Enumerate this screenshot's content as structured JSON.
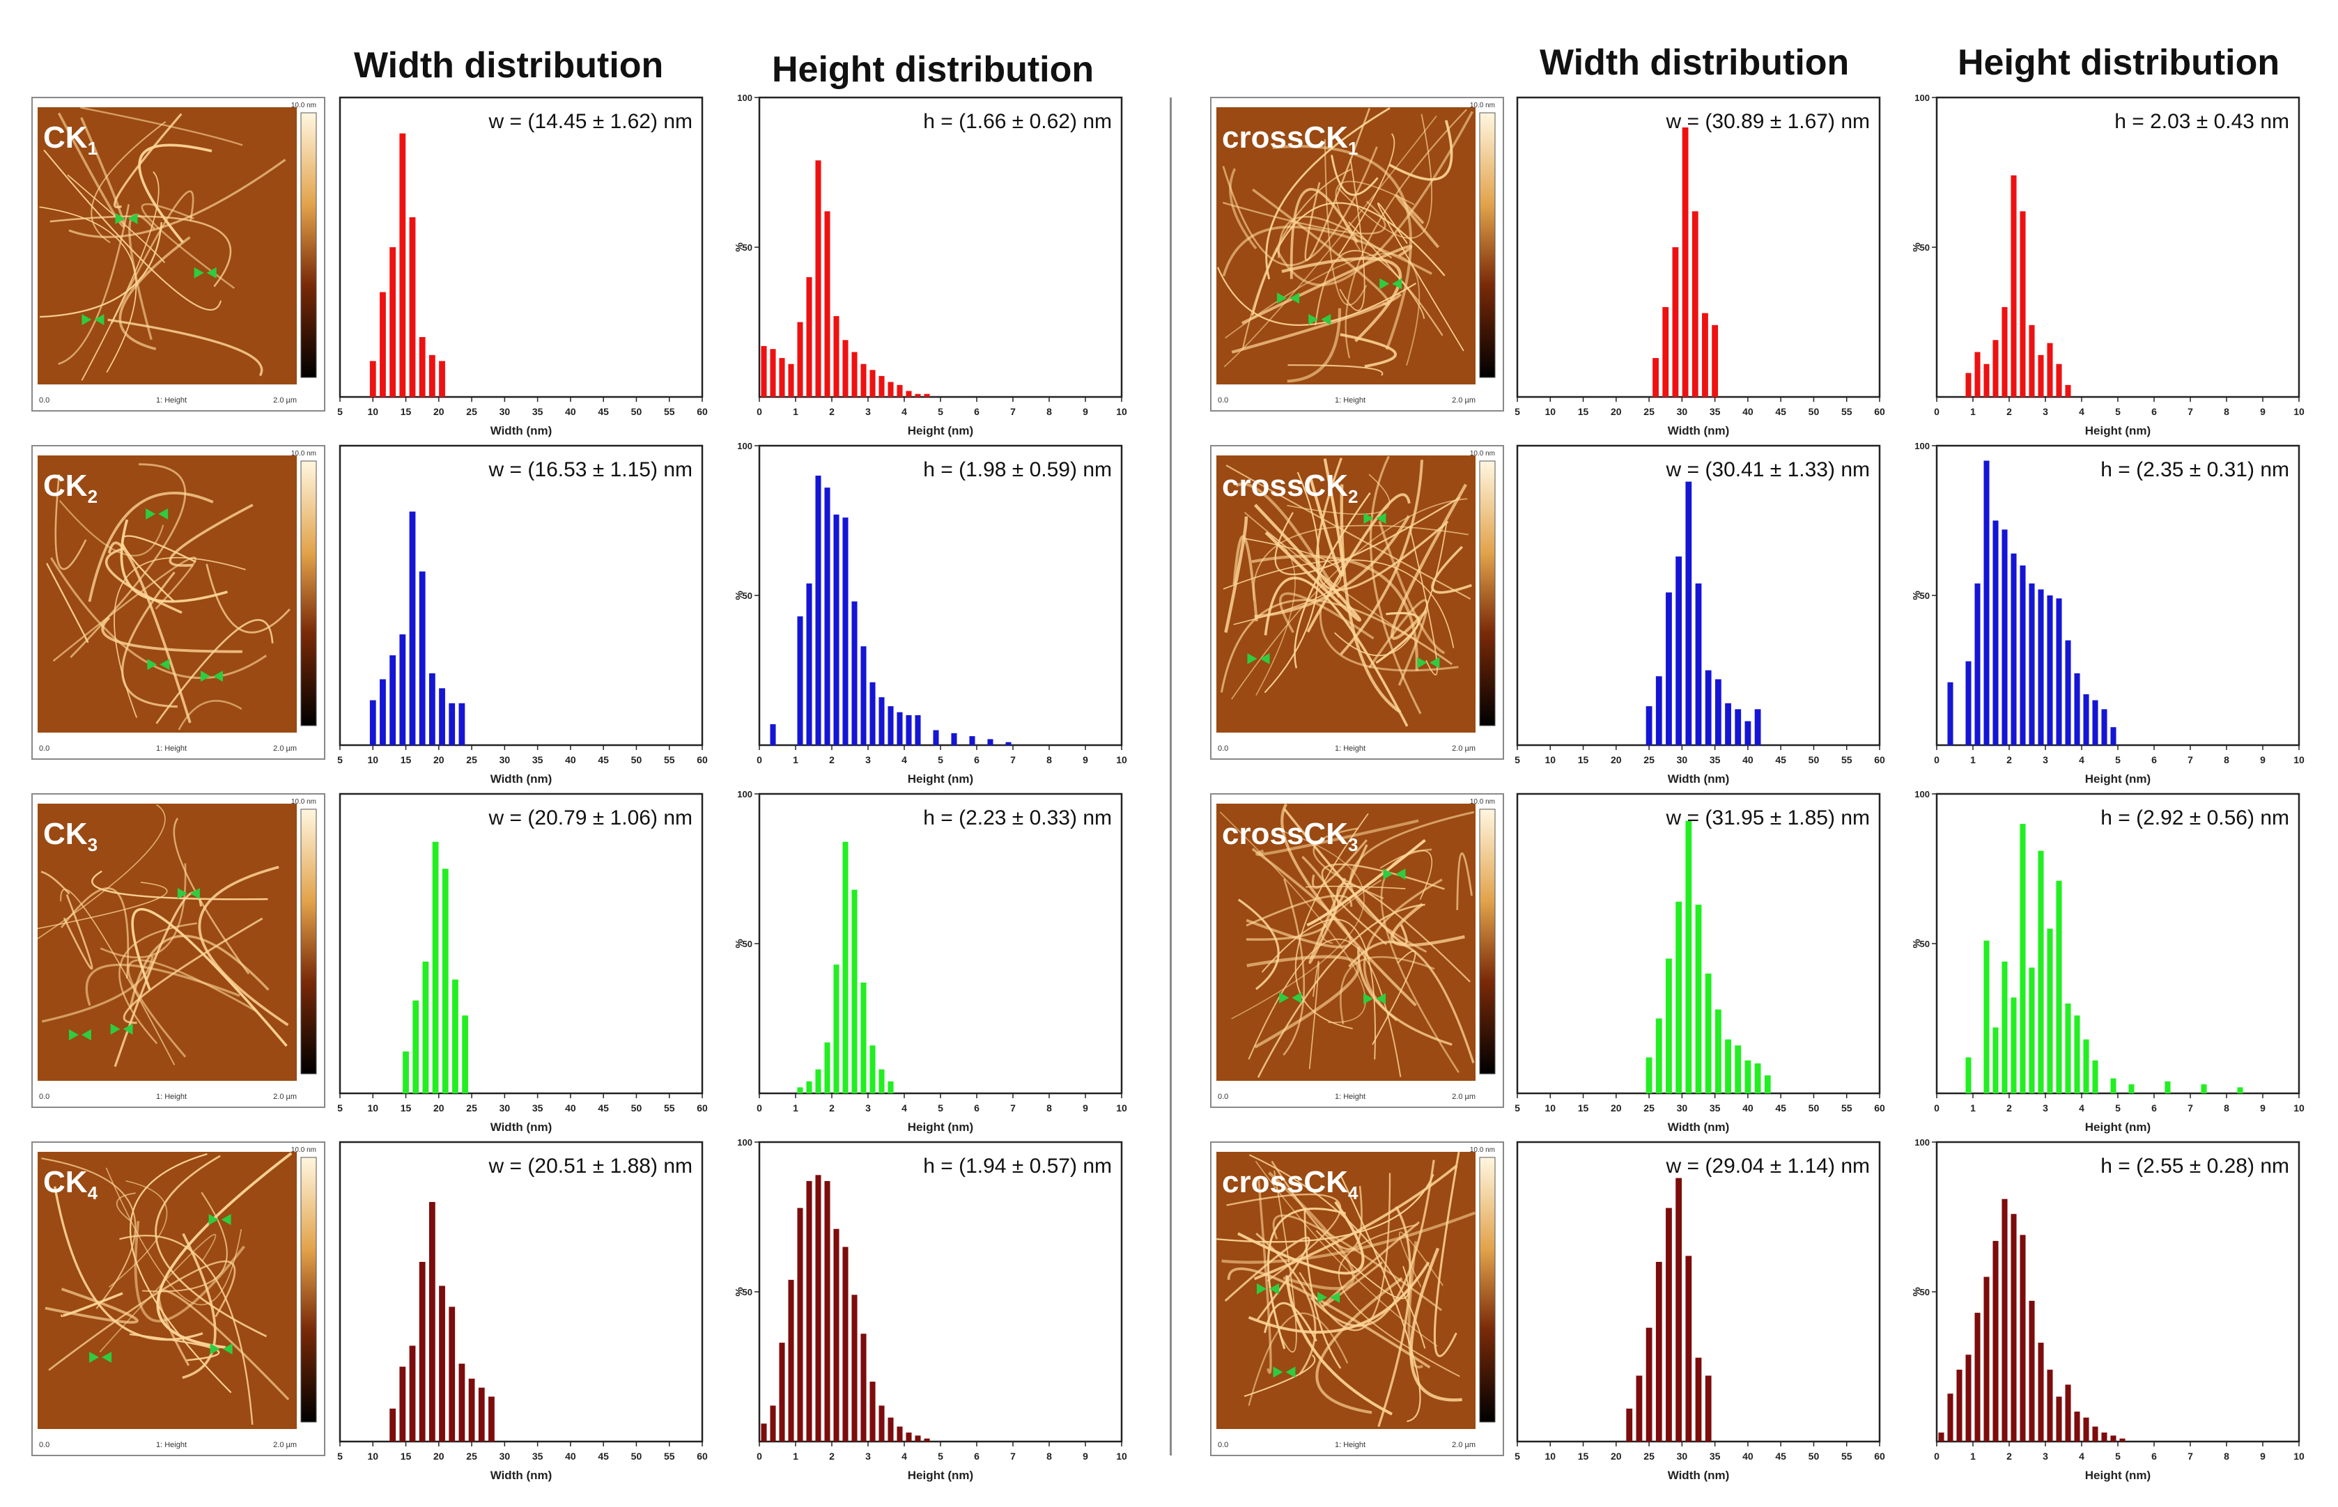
{
  "column_headers": {
    "left_width": "Width distribution",
    "left_height": "Height distribution",
    "right_width": "Width distribution",
    "right_height": "Height distribution"
  },
  "colors": {
    "row1": "#ee1111",
    "row2": "#1515d6",
    "row3": "#22ee22",
    "row4": "#7d0c0c",
    "afm_bg": "#9a4a12",
    "fibril": "#ffd79a",
    "arrow": "#2ecc40",
    "divider": "#8a8a8a"
  },
  "afm_images": [
    {
      "id": "CK1",
      "label_main": "CK",
      "label_sub": "1",
      "color_bar_top": "10.0 nm",
      "scale_left": "0.0",
      "scale_mid": "1: Height",
      "scale_right": "2.0 µm"
    },
    {
      "id": "CK2",
      "label_main": "CK",
      "label_sub": "2",
      "color_bar_top": "10.0 nm",
      "scale_left": "0.0",
      "scale_mid": "1: Height",
      "scale_right": "2.0 µm"
    },
    {
      "id": "CK3",
      "label_main": "CK",
      "label_sub": "3",
      "color_bar_top": "10.0 nm",
      "scale_left": "0.0",
      "scale_mid": "1: Height",
      "scale_right": "2.0 µm"
    },
    {
      "id": "CK4",
      "label_main": "CK",
      "label_sub": "4",
      "color_bar_top": "10.0 nm",
      "scale_left": "0.0",
      "scale_mid": "1: Height",
      "scale_right": "2.0 µm"
    },
    {
      "id": "crossCK1",
      "label_main": "crossCK",
      "label_sub": "1",
      "color_bar_top": "10.0 nm",
      "scale_left": "0.0",
      "scale_mid": "1: Height",
      "scale_right": "2.0 µm"
    },
    {
      "id": "crossCK2",
      "label_main": "crossCK",
      "label_sub": "2",
      "color_bar_top": "10.0 nm",
      "scale_left": "0.0",
      "scale_mid": "1: Height",
      "scale_right": "2.0 µm"
    },
    {
      "id": "crossCK3",
      "label_main": "crossCK",
      "label_sub": "3",
      "color_bar_top": "10.0 nm",
      "scale_left": "0.0",
      "scale_mid": "1: Height",
      "scale_right": "2.0 µm"
    },
    {
      "id": "crossCK4",
      "label_main": "crossCK",
      "label_sub": "4",
      "color_bar_top": "10.0 nm",
      "scale_left": "0.0",
      "scale_mid": "1: Height",
      "scale_right": "2.0 µm"
    }
  ],
  "chart_data": [
    {
      "type": "bar",
      "sample": "CK1",
      "kind": "width",
      "annotation": "w = (14.45 ± 1.62) nm",
      "xlabel": "Width (nm)",
      "ylabel": "",
      "xlim": [
        5,
        60
      ],
      "ylim": [
        0,
        100
      ],
      "xticks": [
        5,
        10,
        15,
        20,
        25,
        30,
        35,
        40,
        45,
        50,
        55,
        60
      ],
      "yticks": [],
      "bin_width": 1.5,
      "color_key": "row1",
      "x": [
        10,
        11.5,
        13,
        14.5,
        16,
        17.5,
        19,
        20.5
      ],
      "values": [
        12,
        35,
        50,
        88,
        60,
        20,
        14,
        12
      ]
    },
    {
      "type": "bar",
      "sample": "CK1",
      "kind": "height",
      "annotation": "h = (1.66 ± 0.62) nm",
      "xlabel": "Height (nm)",
      "ylabel": "%",
      "xlim": [
        0,
        10
      ],
      "ylim": [
        0,
        100
      ],
      "xticks": [
        0,
        1,
        2,
        3,
        4,
        5,
        6,
        7,
        8,
        9,
        10
      ],
      "yticks": [
        50,
        100
      ],
      "bin_width": 0.25,
      "color_key": "row1",
      "x": [
        0.125,
        0.375,
        0.625,
        0.875,
        1.125,
        1.375,
        1.625,
        1.875,
        2.125,
        2.375,
        2.625,
        2.875,
        3.125,
        3.375,
        3.625,
        3.875,
        4.125,
        4.375,
        4.625
      ],
      "values": [
        17,
        16,
        13,
        11,
        25,
        40,
        79,
        62,
        27,
        19,
        15,
        11,
        9,
        7,
        5,
        4,
        2,
        1,
        1
      ]
    },
    {
      "type": "bar",
      "sample": "CK2",
      "kind": "width",
      "annotation": "w = (16.53 ± 1.15) nm",
      "xlabel": "Width (nm)",
      "ylabel": "",
      "xlim": [
        5,
        60
      ],
      "ylim": [
        0,
        100
      ],
      "xticks": [
        5,
        10,
        15,
        20,
        25,
        30,
        35,
        40,
        45,
        50,
        55,
        60
      ],
      "yticks": [],
      "bin_width": 1.5,
      "color_key": "row2",
      "x": [
        10,
        11.5,
        13,
        14.5,
        16,
        17.5,
        19,
        20.5,
        22,
        23.5
      ],
      "values": [
        15,
        22,
        30,
        37,
        78,
        58,
        24,
        19,
        14,
        14
      ]
    },
    {
      "type": "bar",
      "sample": "CK2",
      "kind": "height",
      "annotation": "h = (1.98 ± 0.59) nm",
      "xlabel": "Height (nm)",
      "ylabel": "%",
      "xlim": [
        0,
        10
      ],
      "ylim": [
        0,
        100
      ],
      "xticks": [
        0,
        1,
        2,
        3,
        4,
        5,
        6,
        7,
        8,
        9,
        10
      ],
      "yticks": [
        50,
        100
      ],
      "bin_width": 0.25,
      "color_key": "row2",
      "x": [
        0.375,
        1.125,
        1.375,
        1.625,
        1.875,
        2.125,
        2.375,
        2.625,
        2.875,
        3.125,
        3.375,
        3.625,
        3.875,
        4.125,
        4.375,
        4.875,
        5.375,
        5.875,
        6.375,
        6.875
      ],
      "values": [
        7,
        43,
        54,
        90,
        86,
        77,
        76,
        48,
        33,
        21,
        16,
        13,
        11,
        10,
        10,
        5,
        4,
        3,
        2,
        1
      ]
    },
    {
      "type": "bar",
      "sample": "CK3",
      "kind": "width",
      "annotation": "w = (20.79 ± 1.06) nm",
      "xlabel": "Width (nm)",
      "ylabel": "",
      "xlim": [
        5,
        60
      ],
      "ylim": [
        0,
        100
      ],
      "xticks": [
        5,
        10,
        15,
        20,
        25,
        30,
        35,
        40,
        45,
        50,
        55,
        60
      ],
      "yticks": [],
      "bin_width": 1.5,
      "color_key": "row3",
      "x": [
        15,
        16.5,
        18,
        19.5,
        21,
        22.5,
        24
      ],
      "values": [
        14,
        31,
        44,
        84,
        75,
        38,
        26
      ]
    },
    {
      "type": "bar",
      "sample": "CK3",
      "kind": "height",
      "annotation": "h = (2.23 ± 0.33) nm",
      "xlabel": "Height (nm)",
      "ylabel": "%",
      "xlim": [
        0,
        10
      ],
      "ylim": [
        0,
        100
      ],
      "xticks": [
        0,
        1,
        2,
        3,
        4,
        5,
        6,
        7,
        8,
        9,
        10
      ],
      "yticks": [
        50,
        100
      ],
      "bin_width": 0.25,
      "color_key": "row3",
      "x": [
        1.125,
        1.375,
        1.625,
        1.875,
        2.125,
        2.375,
        2.625,
        2.875,
        3.125,
        3.375,
        3.625
      ],
      "values": [
        2,
        4,
        8,
        17,
        43,
        84,
        68,
        37,
        16,
        8,
        4
      ]
    },
    {
      "type": "bar",
      "sample": "CK4",
      "kind": "width",
      "annotation": "w = (20.51 ± 1.88) nm",
      "xlabel": "Width (nm)",
      "ylabel": "",
      "xlim": [
        5,
        60
      ],
      "ylim": [
        0,
        100
      ],
      "xticks": [
        5,
        10,
        15,
        20,
        25,
        30,
        35,
        40,
        45,
        50,
        55,
        60
      ],
      "yticks": [],
      "bin_width": 1.5,
      "color_key": "row4",
      "x": [
        13,
        14.5,
        16,
        17.5,
        19,
        20.5,
        22,
        23.5,
        25,
        26.5,
        28
      ],
      "values": [
        11,
        25,
        32,
        60,
        80,
        52,
        45,
        26,
        21,
        18,
        15
      ]
    },
    {
      "type": "bar",
      "sample": "CK4",
      "kind": "height",
      "annotation": "h = (1.94 ± 0.57) nm",
      "xlabel": "Height (nm)",
      "ylabel": "%",
      "xlim": [
        0,
        10
      ],
      "ylim": [
        0,
        100
      ],
      "xticks": [
        0,
        1,
        2,
        3,
        4,
        5,
        6,
        7,
        8,
        9,
        10
      ],
      "yticks": [
        50,
        100
      ],
      "bin_width": 0.25,
      "color_key": "row4",
      "x": [
        0.125,
        0.375,
        0.625,
        0.875,
        1.125,
        1.375,
        1.625,
        1.875,
        2.125,
        2.375,
        2.625,
        2.875,
        3.125,
        3.375,
        3.625,
        3.875,
        4.125,
        4.375,
        4.625
      ],
      "values": [
        6,
        12,
        33,
        54,
        78,
        87,
        89,
        87,
        71,
        65,
        49,
        36,
        20,
        12,
        8,
        5,
        3,
        2,
        1
      ]
    },
    {
      "type": "bar",
      "sample": "crossCK1",
      "kind": "width",
      "annotation": "w = (30.89 ± 1.67) nm",
      "xlabel": "Width (nm)",
      "ylabel": "",
      "xlim": [
        5,
        60
      ],
      "ylim": [
        0,
        100
      ],
      "xticks": [
        5,
        10,
        15,
        20,
        25,
        30,
        35,
        40,
        45,
        50,
        55,
        60
      ],
      "yticks": [],
      "bin_width": 1.5,
      "color_key": "row1",
      "x": [
        26,
        27.5,
        29,
        30.5,
        32,
        33.5,
        35
      ],
      "values": [
        13,
        30,
        50,
        90,
        62,
        28,
        24
      ]
    },
    {
      "type": "bar",
      "sample": "crossCK1",
      "kind": "height",
      "annotation": "h = 2.03 ± 0.43 nm",
      "xlabel": "Height (nm)",
      "ylabel": "%",
      "xlim": [
        0,
        10
      ],
      "ylim": [
        0,
        100
      ],
      "xticks": [
        0,
        1,
        2,
        3,
        4,
        5,
        6,
        7,
        8,
        9,
        10
      ],
      "yticks": [
        50,
        100
      ],
      "bin_width": 0.25,
      "color_key": "row1",
      "x": [
        0.875,
        1.125,
        1.375,
        1.625,
        1.875,
        2.125,
        2.375,
        2.625,
        2.875,
        3.125,
        3.375,
        3.625
      ],
      "values": [
        8,
        15,
        11,
        19,
        30,
        74,
        62,
        24,
        14,
        18,
        11,
        4
      ]
    },
    {
      "type": "bar",
      "sample": "crossCK2",
      "kind": "width",
      "annotation": "w = (30.41 ± 1.33) nm",
      "xlabel": "Width (nm)",
      "ylabel": "",
      "xlim": [
        5,
        60
      ],
      "ylim": [
        0,
        100
      ],
      "xticks": [
        5,
        10,
        15,
        20,
        25,
        30,
        35,
        40,
        45,
        50,
        55,
        60
      ],
      "yticks": [],
      "bin_width": 1.5,
      "color_key": "row2",
      "x": [
        25,
        26.5,
        28,
        29.5,
        31,
        32.5,
        34,
        35.5,
        37,
        38.5,
        40,
        41.5
      ],
      "values": [
        13,
        23,
        51,
        63,
        88,
        54,
        25,
        22,
        14,
        12,
        8,
        12
      ]
    },
    {
      "type": "bar",
      "sample": "crossCK2",
      "kind": "height",
      "annotation": "h = (2.35 ± 0.31) nm",
      "xlabel": "Height (nm)",
      "ylabel": "%",
      "xlim": [
        0,
        10
      ],
      "ylim": [
        0,
        100
      ],
      "xticks": [
        0,
        1,
        2,
        3,
        4,
        5,
        6,
        7,
        8,
        9,
        10
      ],
      "yticks": [
        50,
        100
      ],
      "bin_width": 0.25,
      "color_key": "row2",
      "x": [
        0.375,
        0.875,
        1.125,
        1.375,
        1.625,
        1.875,
        2.125,
        2.375,
        2.625,
        2.875,
        3.125,
        3.375,
        3.625,
        3.875,
        4.125,
        4.375,
        4.625,
        4.875
      ],
      "values": [
        21,
        28,
        54,
        95,
        75,
        72,
        64,
        60,
        54,
        52,
        50,
        49,
        35,
        24,
        17,
        15,
        12,
        6
      ]
    },
    {
      "type": "bar",
      "sample": "crossCK3",
      "kind": "width",
      "annotation": "w = (31.95 ± 1.85) nm",
      "xlabel": "Width (nm)",
      "ylabel": "",
      "xlim": [
        5,
        60
      ],
      "ylim": [
        0,
        100
      ],
      "xticks": [
        5,
        10,
        15,
        20,
        25,
        30,
        35,
        40,
        45,
        50,
        55,
        60
      ],
      "yticks": [],
      "bin_width": 1.5,
      "color_key": "row3",
      "x": [
        25,
        26.5,
        28,
        29.5,
        31,
        32.5,
        34,
        35.5,
        37,
        38.5,
        40,
        41.5,
        43
      ],
      "values": [
        12,
        25,
        45,
        64,
        91,
        63,
        40,
        28,
        18,
        16,
        11,
        10,
        6
      ]
    },
    {
      "type": "bar",
      "sample": "crossCK3",
      "kind": "height",
      "annotation": "h = (2.92 ± 0.56) nm",
      "xlabel": "Height (nm)",
      "ylabel": "%",
      "xlim": [
        0,
        10
      ],
      "ylim": [
        0,
        100
      ],
      "xticks": [
        0,
        1,
        2,
        3,
        4,
        5,
        6,
        7,
        8,
        9,
        10
      ],
      "yticks": [
        50,
        100
      ],
      "bin_width": 0.25,
      "color_key": "row3",
      "x": [
        0.875,
        1.375,
        1.625,
        1.875,
        2.125,
        2.375,
        2.625,
        2.875,
        3.125,
        3.375,
        3.625,
        3.875,
        4.125,
        4.375,
        4.875,
        5.375,
        6.375,
        7.375,
        8.375
      ],
      "values": [
        12,
        51,
        22,
        44,
        32,
        90,
        42,
        81,
        55,
        71,
        30,
        26,
        18,
        11,
        5,
        3,
        4,
        3,
        2
      ]
    },
    {
      "type": "bar",
      "sample": "crossCK4",
      "kind": "width",
      "annotation": "w = (29.04 ± 1.14) nm",
      "xlabel": "Width (nm)",
      "ylabel": "",
      "xlim": [
        5,
        60
      ],
      "ylim": [
        0,
        100
      ],
      "xticks": [
        5,
        10,
        15,
        20,
        25,
        30,
        35,
        40,
        45,
        50,
        55,
        60
      ],
      "yticks": [],
      "bin_width": 1.5,
      "color_key": "row4",
      "x": [
        22,
        23.5,
        25,
        26.5,
        28,
        29.5,
        31,
        32.5,
        34
      ],
      "values": [
        11,
        22,
        38,
        60,
        78,
        88,
        62,
        28,
        22
      ]
    },
    {
      "type": "bar",
      "sample": "crossCK4",
      "kind": "height",
      "annotation": "h = (2.55 ± 0.28) nm",
      "xlabel": "Height (nm)",
      "ylabel": "%",
      "xlim": [
        0,
        10
      ],
      "ylim": [
        0,
        100
      ],
      "xticks": [
        0,
        1,
        2,
        3,
        4,
        5,
        6,
        7,
        8,
        9,
        10
      ],
      "yticks": [
        50,
        100
      ],
      "bin_width": 0.25,
      "color_key": "row4",
      "x": [
        0.125,
        0.375,
        0.625,
        0.875,
        1.125,
        1.375,
        1.625,
        1.875,
        2.125,
        2.375,
        2.625,
        2.875,
        3.125,
        3.375,
        3.625,
        3.875,
        4.125,
        4.375,
        4.625,
        4.875,
        5.125
      ],
      "values": [
        3,
        16,
        24,
        29,
        43,
        55,
        67,
        81,
        76,
        69,
        47,
        33,
        24,
        15,
        19,
        10,
        8,
        5,
        3,
        2,
        1
      ]
    }
  ]
}
